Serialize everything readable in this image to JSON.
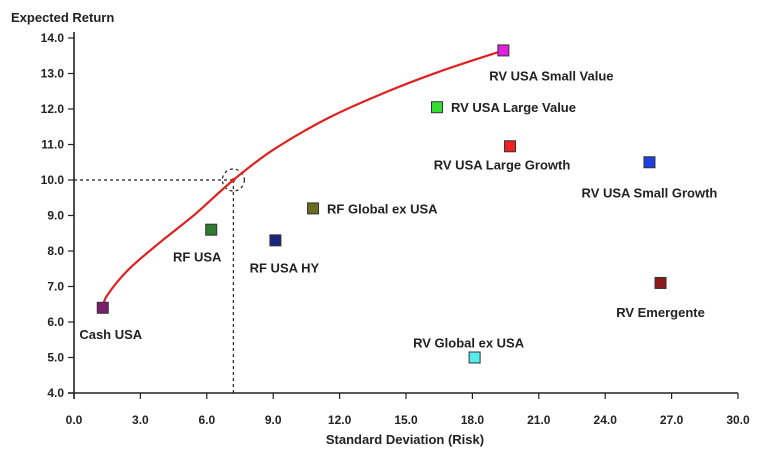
{
  "chart_data": {
    "type": "scatter",
    "title": "",
    "ylabel": "Expected Return",
    "xlabel": "Standard Deviation (Risk)",
    "xlim": [
      0,
      30
    ],
    "ylim": [
      4,
      14
    ],
    "x_ticks": [
      "0.0",
      "3.0",
      "6.0",
      "9.0",
      "12.0",
      "15.0",
      "18.0",
      "21.0",
      "24.0",
      "27.0",
      "30.0"
    ],
    "y_ticks": [
      "4.0",
      "5.0",
      "6.0",
      "7.0",
      "8.0",
      "9.0",
      "10.0",
      "11.0",
      "12.0",
      "13.0",
      "14.0"
    ],
    "grid": false,
    "points": [
      {
        "label": "Cash USA",
        "x": 1.3,
        "y": 6.4,
        "color": "#7a1f6e"
      },
      {
        "label": "RF USA",
        "x": 6.2,
        "y": 8.6,
        "color": "#2e7d2e"
      },
      {
        "label": "RF USA HY",
        "x": 9.1,
        "y": 8.3,
        "color": "#1a237e"
      },
      {
        "label": "RF Global ex USA",
        "x": 10.8,
        "y": 9.2,
        "color": "#6b6b1f"
      },
      {
        "label": "RV USA Small Value",
        "x": 19.4,
        "y": 13.65,
        "color": "#e022e0"
      },
      {
        "label": "RV USA Large Value",
        "x": 16.4,
        "y": 12.05,
        "color": "#33dd33"
      },
      {
        "label": "RV USA Large Growth",
        "x": 19.7,
        "y": 10.95,
        "color": "#ee2222"
      },
      {
        "label": "RV USA Small Growth",
        "x": 26.0,
        "y": 10.5,
        "color": "#1f3fe0"
      },
      {
        "label": "RV Emergente",
        "x": 26.5,
        "y": 7.1,
        "color": "#8b1a1a"
      },
      {
        "label": "RV Global ex USA",
        "x": 18.1,
        "y": 5.0,
        "color": "#55eeee"
      }
    ],
    "frontier": {
      "color": "#dd2222",
      "points": [
        [
          1.3,
          6.4
        ],
        [
          1.5,
          6.75
        ],
        [
          2.5,
          7.5
        ],
        [
          4.0,
          8.3
        ],
        [
          5.5,
          9.05
        ],
        [
          7.2,
          10.0
        ],
        [
          9.0,
          10.85
        ],
        [
          11.5,
          11.75
        ],
        [
          14.0,
          12.45
        ],
        [
          16.5,
          13.05
        ],
        [
          19.4,
          13.65
        ]
      ]
    },
    "highlight": {
      "x": 7.2,
      "y": 10.0
    }
  }
}
